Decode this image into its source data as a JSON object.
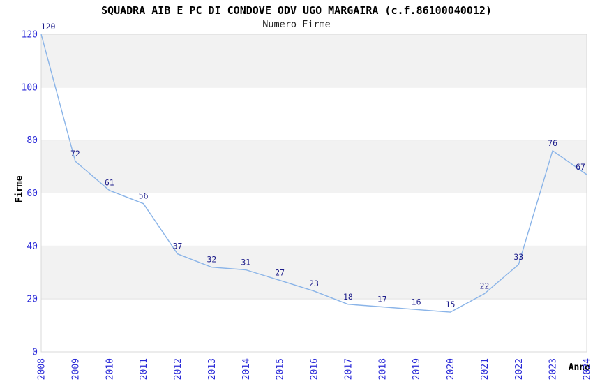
{
  "chart_data": {
    "type": "line",
    "title": "SQUADRA AIB E PC DI CONDOVE ODV UGO MARGAIRA (c.f.86100040012)",
    "subtitle": "Numero Firme",
    "xlabel": "Anno",
    "ylabel": "Firme",
    "categories": [
      "2008",
      "2009",
      "2010",
      "2011",
      "2012",
      "2013",
      "2014",
      "2015",
      "2016",
      "2017",
      "2018",
      "2019",
      "2020",
      "2021",
      "2022",
      "2023",
      "2024"
    ],
    "values": [
      120,
      72,
      61,
      56,
      37,
      32,
      31,
      27,
      23,
      18,
      17,
      16,
      15,
      22,
      33,
      76,
      67
    ],
    "ylim": [
      0,
      120
    ],
    "yticks": [
      0,
      20,
      40,
      60,
      80,
      100,
      120
    ],
    "ytick_step": 20,
    "grid": "horizontal",
    "bands": "alternating-from-top",
    "legend": "none",
    "show_point_labels": true,
    "x_tick_rotation": -90,
    "colors": {
      "line": "#8ab4e8",
      "point_label": "#1c1c8a",
      "tick_label": "#2a2ad8",
      "band": "#f2f2f2",
      "grid_line": "#e2e2e2",
      "plot_border": "#d8d8d8",
      "title": "#000000",
      "subtitle": "#1f1f1f",
      "axis_title": "#000000",
      "background": "#ffffff"
    }
  }
}
